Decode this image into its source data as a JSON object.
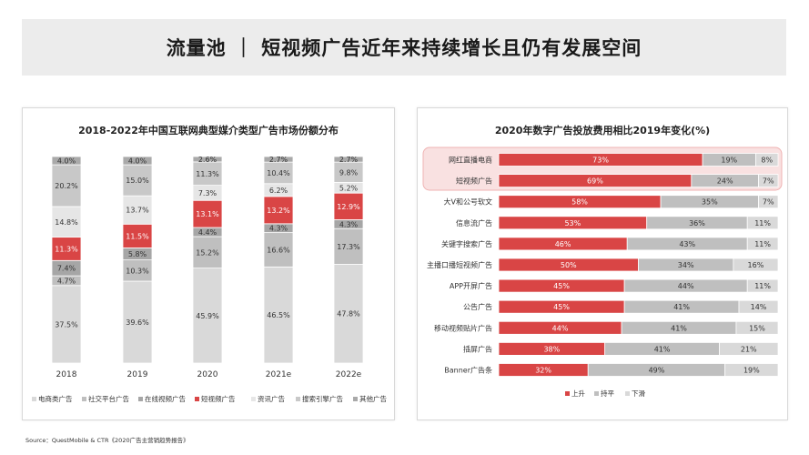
{
  "page": {
    "title": "流量池 ｜ 短视频广告近年来持续增长且仍有发展空间",
    "source": "Source：QuestMobile & CTR《2020广告主营销趋势报告》"
  },
  "colors": {
    "red": "#d94545",
    "gray_dark": "#a6a6a6",
    "gray_mid": "#bfbfbf",
    "gray_light": "#d9d9d9",
    "highlight_fill": "#f9e1e1",
    "highlight_stroke": "#efb2b2"
  },
  "chart_data": [
    {
      "type": "bar",
      "stacked": true,
      "title": "2018-2022年中国互联网典型媒介类型广告市场份额分布",
      "categories": [
        "2018",
        "2019",
        "2020",
        "2021e",
        "2022e"
      ],
      "series": [
        {
          "name": "电商类广告",
          "color": "#d9d9d9",
          "values": [
            37.5,
            39.6,
            45.9,
            46.5,
            47.8
          ]
        },
        {
          "name": "社交平台广告",
          "color": "#bfbfbf",
          "values": [
            4.7,
            10.3,
            15.2,
            16.6,
            17.3
          ]
        },
        {
          "name": "在线视频广告",
          "color": "#a6a6a6",
          "values": [
            7.4,
            5.8,
            4.4,
            4.3,
            4.3
          ]
        },
        {
          "name": "短视频广告",
          "color": "#d94545",
          "values": [
            11.3,
            11.5,
            13.1,
            13.2,
            12.9
          ]
        },
        {
          "name": "资讯广告",
          "color": "#e6e6e6",
          "values": [
            14.8,
            13.7,
            7.3,
            6.2,
            5.2
          ]
        },
        {
          "name": "搜索引擎广告",
          "color": "#c8c8c8",
          "values": [
            20.2,
            15.0,
            11.3,
            10.4,
            9.8
          ]
        },
        {
          "name": "其他广告",
          "color": "#a9a9a9",
          "values": [
            4.0,
            4.0,
            2.6,
            2.7,
            2.7
          ]
        }
      ],
      "value_suffix": "%",
      "legend_position": "bottom"
    },
    {
      "type": "bar",
      "orientation": "horizontal",
      "stacked": true,
      "title": "2020年数字广告投放费用相比2019年变化(%)",
      "categories": [
        "网红直播电商",
        "短视频广告",
        "大V和公号软文",
        "信息流广告",
        "关键字搜索广告",
        "主播口播短视频广告",
        "APP开屏广告",
        "公告广告",
        "移动视频贴片广告",
        "插屏广告",
        "Banner广告条"
      ],
      "series": [
        {
          "name": "上升",
          "color": "#d94545",
          "values": [
            73,
            69,
            58,
            53,
            46,
            50,
            45,
            45,
            44,
            38,
            32
          ]
        },
        {
          "name": "持平",
          "color": "#bfbfbf",
          "values": [
            19,
            24,
            35,
            36,
            43,
            34,
            44,
            41,
            41,
            41,
            49
          ]
        },
        {
          "name": "下滑",
          "color": "#d9d9d9",
          "values": [
            8,
            7,
            7,
            11,
            11,
            16,
            11,
            14,
            15,
            21,
            19
          ]
        }
      ],
      "value_suffix": "%",
      "highlighted_categories": [
        "网红直播电商",
        "短视频广告"
      ],
      "legend_position": "bottom"
    }
  ]
}
